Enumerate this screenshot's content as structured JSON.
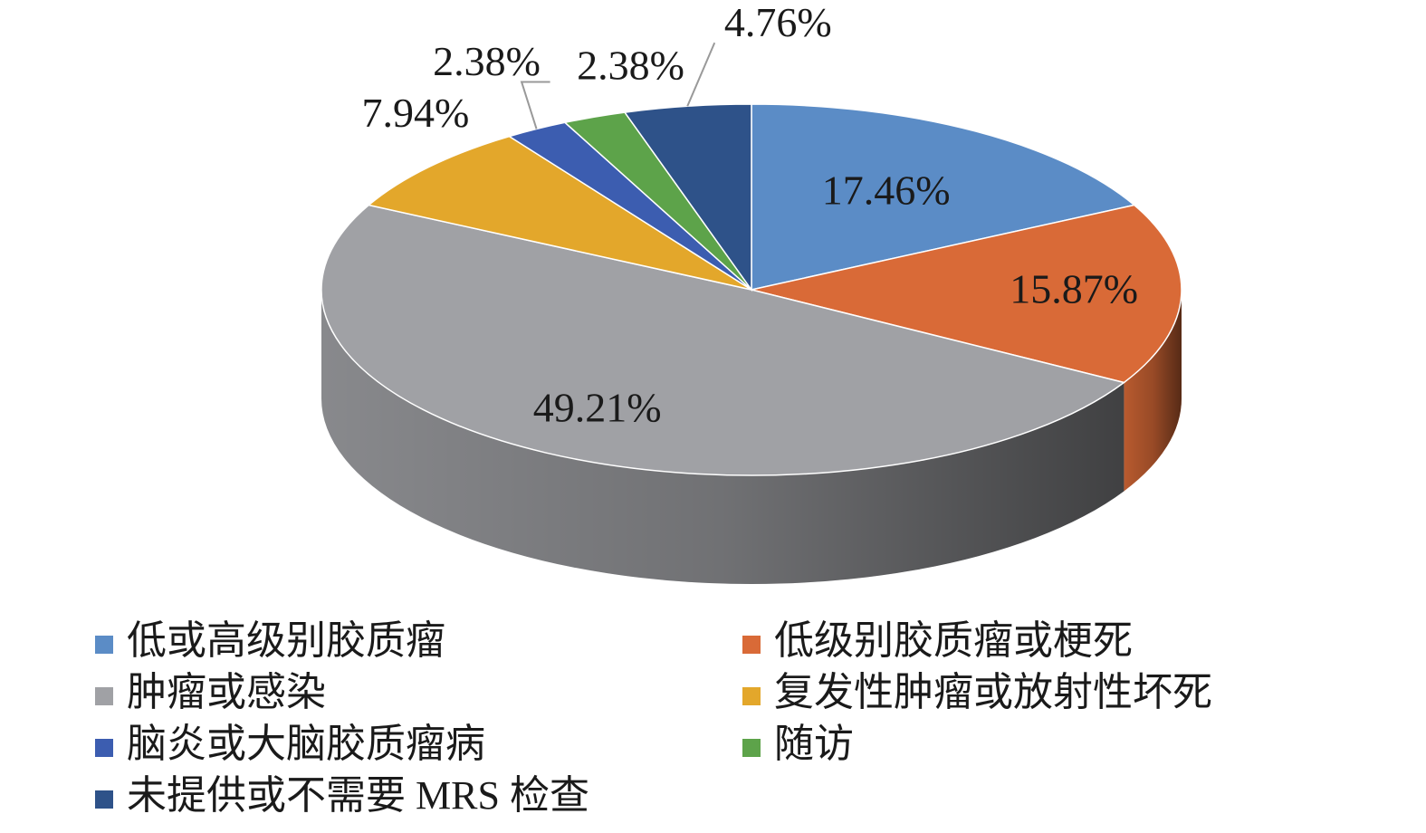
{
  "chart_data": {
    "type": "pie",
    "categories": [
      "低或高级别胶质瘤",
      "低级别胶质瘤或梗死",
      "肿瘤或感染",
      "复发性肿瘤或放射性坏死",
      "脑炎或大脑胶质瘤病",
      "随访",
      "未提供或不需要 MRS 检查"
    ],
    "values": [
      17.46,
      15.87,
      49.21,
      7.94,
      2.38,
      2.38,
      4.76
    ],
    "value_labels": [
      "17.46%",
      "15.87%",
      "49.21%",
      "7.94%",
      "2.38%",
      "2.38%",
      "4.76%"
    ],
    "colors": [
      "#5b8cc6",
      "#d96a37",
      "#a0a1a5",
      "#e3a72b",
      "#3c5db0",
      "#5da34a",
      "#2e5289"
    ]
  }
}
